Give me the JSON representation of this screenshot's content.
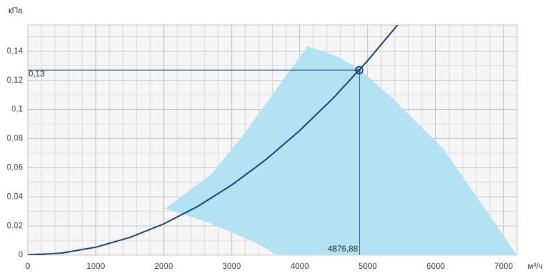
{
  "chart_data": {
    "type": "line",
    "y_label": "кПа",
    "x_label": "м³/ч",
    "xlim": [
      0,
      7200
    ],
    "ylim": [
      0,
      0.158
    ],
    "xticks": [
      0,
      1000,
      2000,
      3000,
      4000,
      5000,
      6000,
      7000
    ],
    "yticks": [
      0,
      {
        "value": 0.02,
        "label": "0,02"
      },
      {
        "value": 0.04,
        "label": "0,04"
      },
      {
        "value": 0.06,
        "label": "0,06"
      },
      {
        "value": 0.08,
        "label": "0,08"
      },
      {
        "value": 0.1,
        "label": "0,1"
      },
      {
        "value": 0.12,
        "label": "0,12"
      },
      {
        "value": 0.14,
        "label": "0,14"
      }
    ],
    "xminorticks": [
      200,
      400,
      600,
      800,
      1200,
      1400,
      1600,
      1800,
      2200,
      2400,
      2600,
      2800,
      3200,
      3400,
      3600,
      3800,
      4200,
      4400,
      4600,
      4800,
      5200,
      5400,
      5600,
      5800,
      6200,
      6400,
      6600,
      6800,
      7200
    ],
    "yminorticks": [
      0.01,
      0.03,
      0.05,
      0.07,
      0.09,
      0.11,
      0.13,
      0.15
    ],
    "grid": true,
    "area": {
      "color": "#b3e2f2",
      "x": [
        2020,
        2704,
        3163,
        4112,
        4541,
        4898,
        5357,
        6122,
        7194,
        3673,
        3367,
        2653
      ],
      "values": [
        0.0319,
        0.0557,
        0.0819,
        0.1433,
        0.1367,
        0.127,
        0.1081,
        0.0724,
        0,
        0,
        0.0081,
        0.0224
      ]
    },
    "curve": {
      "color": "#0f3d78",
      "x": [
        0,
        500,
        1000,
        1500,
        2000,
        2500,
        3000,
        3500,
        4000,
        4500,
        5000,
        5450
      ],
      "values": [
        0,
        0.001335,
        0.00534,
        0.01201,
        0.02136,
        0.03337,
        0.04806,
        0.06541,
        0.08543,
        0.1081,
        0.1335,
        0.1586
      ]
    },
    "point": {
      "x": 4876.88,
      "y": 0.127,
      "x_label": "4876,88",
      "y_label": "0,13",
      "color": "#0f3d78"
    }
  }
}
